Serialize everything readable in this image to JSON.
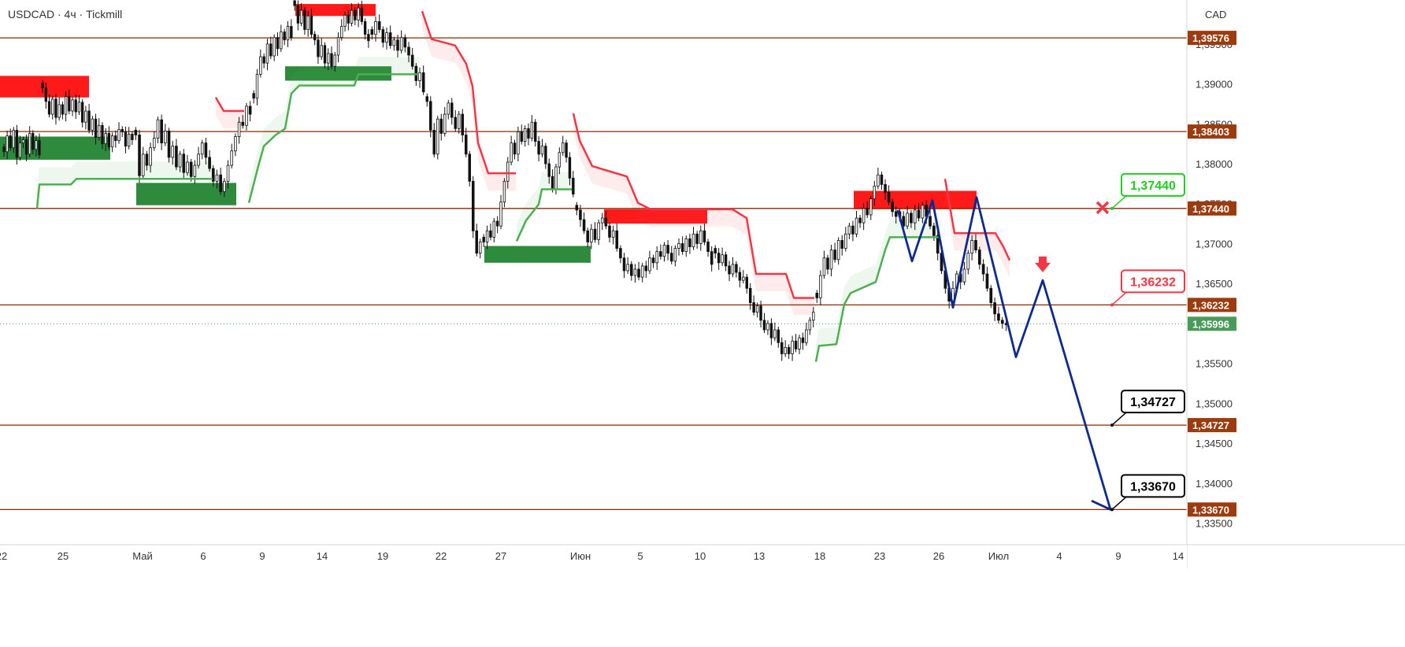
{
  "header": {
    "title": "USDCAD · 4ч · Tickmill"
  },
  "price_scale": {
    "currency": "CAD"
  },
  "colors": {
    "level_line": "#8b2a00",
    "level_badge": "#9c3b0d",
    "current_badge": "#4a9a5a",
    "bull_zone": "#2e8b3e",
    "bear_zone": "#ff1a1a",
    "st_up": "#4caf50",
    "st_down": "#f23645",
    "forecast": "#0d2a8c",
    "candle": "#111111"
  },
  "chart_data": {
    "type": "line",
    "x_tick_labels": [
      "22",
      "25",
      "Май",
      "6",
      "9",
      "14",
      "19",
      "22",
      "27",
      "Июн",
      "5",
      "10",
      "13",
      "18",
      "23",
      "26",
      "Июл",
      "4",
      "9",
      "14"
    ],
    "y_tick_labels": [
      "1,33500",
      "1,34000",
      "1,34500",
      "1,35000",
      "1,35500",
      "1,36000",
      "1,36500",
      "1,37000",
      "1,37500",
      "1,38000",
      "1,38500",
      "1,39000",
      "1,39500"
    ],
    "y_ticks": [
      1.335,
      1.34,
      1.345,
      1.35,
      1.355,
      1.36,
      1.365,
      1.37,
      1.375,
      1.38,
      1.385,
      1.39,
      1.395
    ],
    "ylim": [
      1.3323,
      1.4005
    ],
    "levels": [
      {
        "value": 1.39576,
        "label": "1,39576"
      },
      {
        "value": 1.38403,
        "label": "1,38403"
      },
      {
        "value": 1.3744,
        "label": "1,37440"
      },
      {
        "value": 1.36232,
        "label": "1,36232"
      },
      {
        "value": 1.34727,
        "label": "1,34727"
      },
      {
        "value": 1.3367,
        "label": "1,33670"
      }
    ],
    "current_price": {
      "value": 1.35996,
      "label": "1,35996"
    },
    "callouts": [
      {
        "label": "1,37440",
        "value": 1.3744,
        "style": "stop",
        "color": "#22cc22",
        "fill": "#ffffff",
        "text_color": "#22cc22"
      },
      {
        "label": "1,36232",
        "value": 1.36232,
        "style": "entry",
        "color": "#f23645",
        "fill": "#ffffff",
        "text_color": "#f23645"
      },
      {
        "label": "1,34727",
        "value": 1.34727,
        "style": "target",
        "color": "#000000",
        "fill": "#ffffff",
        "text_color": "#000000"
      },
      {
        "label": "1,33670",
        "value": 1.3367,
        "style": "target",
        "color": "#000000",
        "fill": "#ffffff",
        "text_color": "#000000"
      }
    ],
    "markers": [
      {
        "type": "cross",
        "value": 1.3744,
        "color": "#f23645"
      },
      {
        "type": "arrow-down",
        "value": 1.3672,
        "color": "#f23645"
      }
    ],
    "zones": [
      {
        "type": "supply",
        "from": 0,
        "to": 113,
        "top": 1.391,
        "bottom": 1.3883
      },
      {
        "type": "demand",
        "from": 0,
        "to": 140,
        "top": 1.3834,
        "bottom": 1.3805
      },
      {
        "type": "demand",
        "from": 173,
        "to": 300,
        "top": 1.3776,
        "bottom": 1.3748
      },
      {
        "type": "supply",
        "from": 375,
        "to": 477,
        "top": 1.4,
        "bottom": 1.3985
      },
      {
        "type": "demand",
        "from": 362,
        "to": 497,
        "top": 1.3922,
        "bottom": 1.3904
      },
      {
        "type": "demand",
        "from": 615,
        "to": 750,
        "top": 1.3697,
        "bottom": 1.3676
      },
      {
        "type": "supply",
        "from": 767,
        "to": 898,
        "top": 1.3743,
        "bottom": 1.3725
      },
      {
        "type": "supply",
        "from": 1084,
        "to": 1240,
        "top": 1.3766,
        "bottom": 1.3743
      }
    ],
    "forecast_path": [
      {
        "x": 1140,
        "y": 1.3742
      },
      {
        "x": 1158,
        "y": 1.3678
      },
      {
        "x": 1184,
        "y": 1.3754
      },
      {
        "x": 1210,
        "y": 1.362
      },
      {
        "x": 1240,
        "y": 1.3758
      },
      {
        "x": 1290,
        "y": 1.3558
      },
      {
        "x": 1324,
        "y": 1.3654
      },
      {
        "x": 1410,
        "y": 1.3367
      },
      {
        "x": 1386,
        "y": 1.3378
      }
    ],
    "supertrend": [
      {
        "dir": "up",
        "points": [
          [
            47,
            1.3744
          ],
          [
            50,
            1.3774
          ],
          [
            90,
            1.3774
          ],
          [
            97,
            1.3781
          ],
          [
            270,
            1.3781
          ]
        ]
      },
      {
        "dir": "down",
        "points": [
          [
            274,
            1.3883
          ],
          [
            284,
            1.3866
          ],
          [
            310,
            1.3866
          ]
        ]
      },
      {
        "dir": "up",
        "points": [
          [
            316,
            1.3751
          ],
          [
            328,
            1.3797
          ],
          [
            335,
            1.3822
          ],
          [
            350,
            1.3836
          ],
          [
            362,
            1.3844
          ],
          [
            370,
            1.3888
          ],
          [
            380,
            1.3898
          ],
          [
            450,
            1.3898
          ],
          [
            455,
            1.3912
          ],
          [
            532,
            1.3912
          ]
        ]
      },
      {
        "dir": "down",
        "points": [
          [
            536,
            1.3991
          ],
          [
            548,
            1.3956
          ],
          [
            578,
            1.3948
          ],
          [
            592,
            1.3925
          ],
          [
            600,
            1.3897
          ],
          [
            607,
            1.3826
          ],
          [
            620,
            1.3788
          ],
          [
            655,
            1.3788
          ]
        ]
      },
      {
        "dir": "up",
        "points": [
          [
            656,
            1.3703
          ],
          [
            668,
            1.3729
          ],
          [
            684,
            1.3749
          ],
          [
            688,
            1.3768
          ],
          [
            726,
            1.3768
          ]
        ]
      },
      {
        "dir": "down",
        "points": [
          [
            728,
            1.3863
          ],
          [
            736,
            1.3829
          ],
          [
            752,
            1.3797
          ],
          [
            796,
            1.3784
          ],
          [
            810,
            1.3751
          ],
          [
            826,
            1.3743
          ],
          [
            930,
            1.3743
          ],
          [
            948,
            1.3732
          ],
          [
            960,
            1.3662
          ],
          [
            998,
            1.3662
          ],
          [
            1008,
            1.3632
          ],
          [
            1034,
            1.3632
          ]
        ]
      },
      {
        "dir": "up",
        "points": [
          [
            1036,
            1.3552
          ],
          [
            1040,
            1.3572
          ],
          [
            1062,
            1.3574
          ],
          [
            1072,
            1.3624
          ],
          [
            1080,
            1.3638
          ],
          [
            1112,
            1.3652
          ],
          [
            1124,
            1.3692
          ],
          [
            1130,
            1.3708
          ],
          [
            1194,
            1.3708
          ]
        ]
      },
      {
        "dir": "down",
        "points": [
          [
            1200,
            1.3781
          ],
          [
            1212,
            1.3713
          ],
          [
            1264,
            1.3713
          ],
          [
            1274,
            1.3696
          ],
          [
            1282,
            1.3679
          ]
        ]
      }
    ],
    "candles_segments": [
      {
        "x0": 3,
        "x1": 52,
        "vals": [
          1.3815,
          1.3835,
          1.382,
          1.3842,
          1.3808,
          1.3826,
          1.383,
          1.3812,
          1.3838,
          1.3818,
          1.3829,
          1.3811
        ]
      },
      {
        "x0": 52,
        "x1": 170,
        "vals": [
          1.3895,
          1.3878,
          1.3862,
          1.3881,
          1.3858,
          1.3874,
          1.3862,
          1.3884,
          1.3866,
          1.388,
          1.3865,
          1.3877,
          1.3852,
          1.3866,
          1.3842,
          1.3856,
          1.3833,
          1.3848,
          1.3825,
          1.3838,
          1.3821,
          1.3835,
          1.3829,
          1.3843,
          1.384,
          1.3822,
          1.3837,
          1.383
        ]
      },
      {
        "x0": 170,
        "x1": 320,
        "vals": [
          1.3836,
          1.3785,
          1.3812,
          1.3798,
          1.382,
          1.3832,
          1.3855,
          1.3826,
          1.3841,
          1.3808,
          1.3822,
          1.3796,
          1.3812,
          1.3789,
          1.3802,
          1.3784,
          1.3798,
          1.3812,
          1.3826,
          1.3808,
          1.3794,
          1.3778,
          1.3786,
          1.3765,
          1.3778,
          1.3798,
          1.3816,
          1.3834,
          1.3852,
          1.3848,
          1.3872,
          1.3862
        ]
      },
      {
        "x0": 320,
        "x1": 372,
        "vals": [
          1.3882,
          1.3912,
          1.3934,
          1.3926,
          1.395,
          1.3935,
          1.3958,
          1.3944,
          1.3965,
          1.3955,
          1.3972,
          1.3958
        ]
      },
      {
        "x0": 372,
        "x1": 470,
        "vals": [
          1.3998,
          1.3976,
          1.3992,
          1.3968,
          1.3985,
          1.3962,
          1.3955,
          1.3934,
          1.3948,
          1.3926,
          1.3938,
          1.3922,
          1.3936,
          1.3958,
          1.3972,
          1.3986,
          1.3976,
          1.3992,
          1.398,
          1.3995,
          1.3978,
          1.3962,
          1.3954
        ]
      },
      {
        "x0": 470,
        "x1": 540,
        "vals": [
          1.3962,
          1.3978,
          1.3968,
          1.3952,
          1.3964,
          1.3948,
          1.3955,
          1.3942,
          1.3958,
          1.3946,
          1.3936,
          1.3922,
          1.3904,
          1.3914,
          1.389
        ]
      },
      {
        "x0": 540,
        "x1": 612,
        "vals": [
          1.3878,
          1.3842,
          1.3812,
          1.3856,
          1.3838,
          1.3862,
          1.3876,
          1.3858,
          1.3844,
          1.3862,
          1.3836,
          1.3812,
          1.3778,
          1.3716,
          1.3688,
          1.3702
        ]
      },
      {
        "x0": 612,
        "x1": 730,
        "vals": [
          1.3702,
          1.3716,
          1.3708,
          1.3728,
          1.3722,
          1.3752,
          1.3778,
          1.3802,
          1.3826,
          1.3812,
          1.384,
          1.3828,
          1.3844,
          1.3832,
          1.3852,
          1.3828,
          1.3812,
          1.3822,
          1.38,
          1.3784,
          1.3768,
          1.3796,
          1.3814,
          1.3826,
          1.3808,
          1.3782,
          1.3762
        ]
      },
      {
        "x0": 730,
        "x1": 906,
        "vals": [
          1.3742,
          1.373,
          1.3716,
          1.3702,
          1.3718,
          1.3705,
          1.3726,
          1.3732,
          1.3722,
          1.3708,
          1.3716,
          1.3694,
          1.3682,
          1.3666,
          1.3674,
          1.366,
          1.3668,
          1.3658,
          1.3672,
          1.3666,
          1.3682,
          1.3676,
          1.369,
          1.3684,
          1.3698,
          1.3688,
          1.3678,
          1.3694,
          1.37,
          1.369,
          1.3706,
          1.3696,
          1.3712,
          1.37,
          1.3716,
          1.3702,
          1.369,
          1.3674
        ]
      },
      {
        "x0": 906,
        "x1": 1035,
        "vals": [
          1.3688,
          1.3676,
          1.3686,
          1.3672,
          1.3662,
          1.3674,
          1.3664,
          1.3654,
          1.3658,
          1.3644,
          1.3626,
          1.3614,
          1.3622,
          1.3604,
          1.3592,
          1.36,
          1.3582,
          1.3592,
          1.3576,
          1.3562,
          1.357,
          1.3562,
          1.3578,
          1.3568,
          1.3582,
          1.3576,
          1.3592,
          1.3604,
          1.3614
        ]
      },
      {
        "x0": 1035,
        "x1": 1140,
        "vals": [
          1.3632,
          1.366,
          1.3682,
          1.3668,
          1.3692,
          1.368,
          1.3704,
          1.3694,
          1.3712,
          1.3722,
          1.3712,
          1.3732,
          1.3726,
          1.3744,
          1.3736,
          1.3756,
          1.3772,
          1.3786,
          1.3774,
          1.3764,
          1.3752,
          1.374,
          1.3734
        ]
      },
      {
        "x0": 1140,
        "x1": 1280,
        "vals": [
          1.3734,
          1.3722,
          1.3738,
          1.3726,
          1.3742,
          1.3732,
          1.3748,
          1.3734,
          1.3722,
          1.371,
          1.3688,
          1.3666,
          1.3644,
          1.3628,
          1.3644,
          1.3662,
          1.3652,
          1.3668,
          1.3688,
          1.3704,
          1.3692,
          1.3674,
          1.3662,
          1.3644,
          1.3626,
          1.3612,
          1.3604,
          1.36,
          1.35996
        ]
      }
    ]
  }
}
